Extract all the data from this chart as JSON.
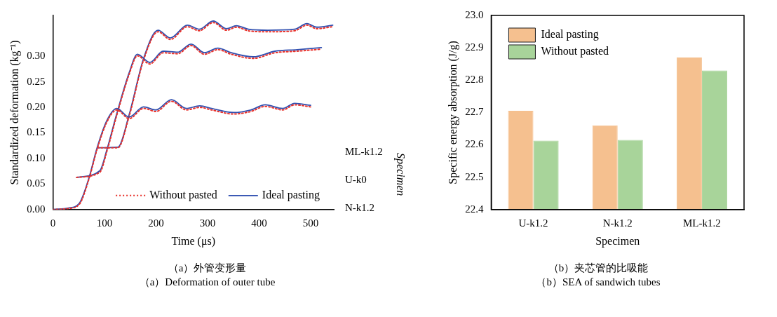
{
  "chart_data": [
    {
      "type": "line",
      "xlabel": "Time (μs)",
      "ylabel": "Standardized deformation (kg⁻¹)",
      "xlim": [
        0,
        545
      ],
      "ylim": [
        0,
        0.38
      ],
      "xticks": [
        0,
        100,
        200,
        300,
        400,
        500
      ],
      "yticks": [
        {
          "value": 0,
          "label": "0.00"
        },
        0.05,
        {
          "value": 0.1,
          "label": "0.10"
        },
        0.15,
        {
          "value": 0.2,
          "label": "0.20"
        },
        0.25,
        {
          "value": 0.3,
          "label": "0.30"
        }
      ],
      "grid": false,
      "legend": "bottom right",
      "marker": "none",
      "series": [
        {
          "name": "Without pasted",
          "color": "#e8302a",
          "line_style": "dotted",
          "x": [
            0,
            30,
            51,
            70,
            86,
            105,
            124,
            148,
            176,
            200,
            230,
            259,
            285,
            308,
            351,
            384,
            412,
            446,
            469,
            500
          ],
          "values": [
            0,
            0.002,
            0.01,
            0.06,
            0.119,
            0.172,
            0.195,
            0.178,
            0.198,
            0.192,
            0.212,
            0.195,
            0.2,
            0.195,
            0.187,
            0.192,
            0.202,
            0.195,
            0.205,
            0.201
          ]
        },
        {
          "name": "Ideal pasting",
          "color": "#2f4fb0",
          "line_style": "solid",
          "x": [
            0,
            30,
            51,
            70,
            86,
            105,
            124,
            148,
            176,
            200,
            230,
            259,
            285,
            308,
            351,
            384,
            412,
            446,
            469,
            500
          ],
          "values": [
            0,
            0.003,
            0.012,
            0.062,
            0.122,
            0.175,
            0.198,
            0.181,
            0.201,
            0.195,
            0.215,
            0.198,
            0.203,
            0.198,
            0.19,
            0.195,
            0.205,
            0.198,
            0.208,
            0.204
          ]
        },
        {
          "color": "#e8302a",
          "line_style": "dotted",
          "x": [
            46,
            91,
            105,
            124,
            148,
            164,
            188,
            214,
            242,
            268,
            294,
            320,
            346,
            389,
            431,
            474,
            521
          ],
          "values": [
            0.063,
            0.073,
            0.115,
            0.185,
            0.265,
            0.301,
            0.285,
            0.307,
            0.305,
            0.321,
            0.304,
            0.313,
            0.304,
            0.296,
            0.307,
            0.31,
            0.314
          ]
        },
        {
          "color": "#2f4fb0",
          "line_style": "solid",
          "x": [
            46,
            91,
            105,
            124,
            148,
            164,
            188,
            214,
            242,
            268,
            294,
            320,
            346,
            389,
            431,
            474,
            521
          ],
          "values": [
            0.063,
            0.076,
            0.118,
            0.188,
            0.268,
            0.304,
            0.288,
            0.31,
            0.308,
            0.324,
            0.307,
            0.316,
            0.307,
            0.299,
            0.31,
            0.313,
            0.317
          ]
        },
        {
          "color": "#e8302a",
          "line_style": "dotted",
          "x": [
            87,
            126,
            148,
            176,
            204,
            228,
            261,
            284,
            311,
            337,
            356,
            379,
            417,
            469,
            493,
            512,
            543
          ],
          "values": [
            0.121,
            0.121,
            0.183,
            0.293,
            0.348,
            0.333,
            0.358,
            0.35,
            0.366,
            0.351,
            0.357,
            0.35,
            0.348,
            0.35,
            0.361,
            0.354,
            0.358
          ]
        },
        {
          "color": "#2f4fb0",
          "line_style": "solid",
          "x": [
            87,
            126,
            148,
            176,
            204,
            228,
            261,
            284,
            311,
            337,
            356,
            379,
            417,
            469,
            493,
            512,
            543
          ],
          "values": [
            0.121,
            0.122,
            0.186,
            0.296,
            0.351,
            0.336,
            0.361,
            0.353,
            0.369,
            0.354,
            0.36,
            0.353,
            0.351,
            0.353,
            0.364,
            0.357,
            0.361
          ]
        }
      ],
      "annotations": [
        "N-k1.2",
        "U-k0",
        "ML-k1.2",
        "Specimen",
        "（a）外管变形量",
        "（a）Deformation of outer tube"
      ]
    },
    {
      "type": "bar",
      "xlabel": "Specimen",
      "ylabel": "Specific energy absorption (J/g)",
      "categories": [
        "U-k1.2",
        "N-k1.2",
        "ML-k1.2"
      ],
      "ylim": [
        22.4,
        23
      ],
      "yticks": [
        22.4,
        22.5,
        22.6,
        22.7,
        22.8,
        22.9,
        {
          "value": 23,
          "label": "23.0"
        }
      ],
      "grid": false,
      "legend": "top left",
      "series": [
        {
          "name": "Ideal pasting",
          "color": "#f5c08f",
          "values": [
            22.705,
            22.66,
            22.87
          ]
        },
        {
          "name": "Without pasted",
          "color": "#a8d49a",
          "values": [
            22.613,
            22.615,
            22.83
          ]
        }
      ],
      "annotations": [
        "（b）夹芯管的比吸能",
        "（b）SEA of sandwich tubes"
      ]
    }
  ]
}
